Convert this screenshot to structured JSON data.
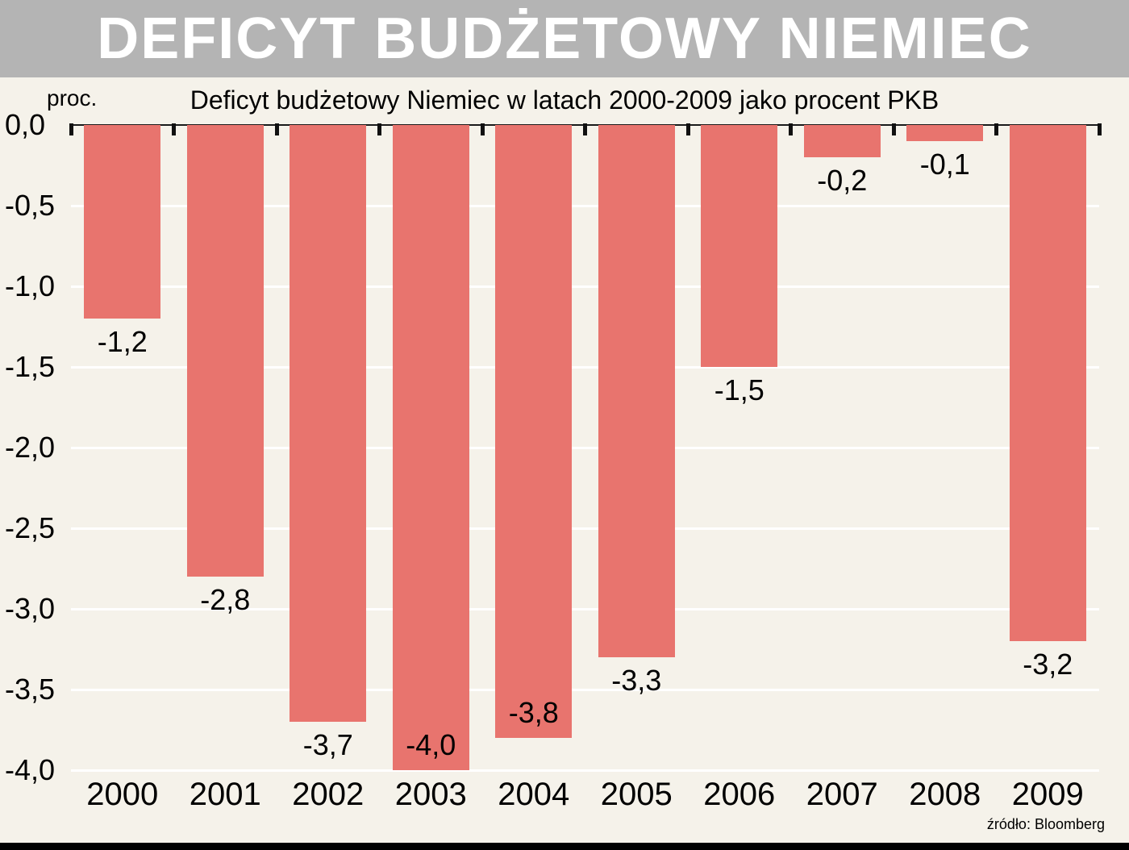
{
  "header": {
    "title": "DEFICYT BUDŻETOWY NIEMIEC"
  },
  "chart": {
    "subtitle": "Deficyt budżetowy Niemiec w latach 2000-2009 jako procent PKB",
    "unit_label": "proc.",
    "source": "źródło: Bloomberg"
  },
  "chart_data": {
    "type": "bar",
    "title": "Deficyt budżetowy Niemiec w latach 2000-2009 jako procent PKB",
    "categories": [
      "2000",
      "2001",
      "2002",
      "2003",
      "2004",
      "2005",
      "2006",
      "2007",
      "2008",
      "2009"
    ],
    "values": [
      -1.2,
      -2.8,
      -3.7,
      -4.0,
      -3.8,
      -3.3,
      -1.5,
      -0.2,
      -0.1,
      -3.2
    ],
    "value_labels": [
      "-1,2",
      "-2,8",
      "-3,7",
      "-4,0",
      "-3,8",
      "-3,3",
      "-1,5",
      "-0,2",
      "-0,1",
      "-3,2"
    ],
    "ylabel": "proc.",
    "ylim": [
      -4.0,
      0.0
    ],
    "yticks": [
      "0,0",
      "-0,5",
      "-1,0",
      "-1,5",
      "-2,0",
      "-2,5",
      "-3,0",
      "-3,5",
      "-4,0"
    ],
    "grid": true,
    "legend": false,
    "bar_color": "#e8746e",
    "background_color": "#f5f2ea",
    "title_band_color": "#b4b4b4",
    "source": "źródło: Bloomberg"
  }
}
